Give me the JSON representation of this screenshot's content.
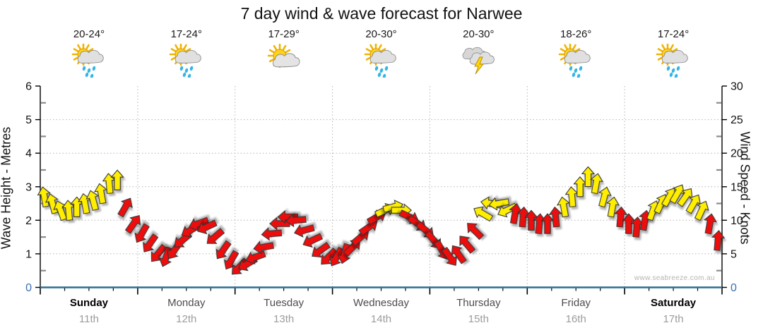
{
  "title": "7 day wind & wave forecast for Narwee",
  "watermark": "www.seabreeze.com.au",
  "colors": {
    "arrow_yellow": "#ffee00",
    "arrow_red": "#ee1111",
    "arrow_outline": "#333333",
    "axis_black": "#000000",
    "x_axis_blue": "#2d6d96",
    "zero_label_blue": "#3a6fb2",
    "grid_gray": "#b5b5b5",
    "minor_tick_gray": "#8c8c8c"
  },
  "left_axis": {
    "label": "Wave Height - Metres",
    "ticks": [
      0,
      1,
      2,
      3,
      4,
      5,
      6
    ],
    "min": 0,
    "max": 6
  },
  "right_axis": {
    "label": "Wind Speed - Knots",
    "ticks": [
      0,
      5,
      10,
      15,
      20,
      25,
      30
    ],
    "min": 0,
    "max": 30
  },
  "days": [
    {
      "name": "Sunday",
      "date": "11th",
      "temp": "20-24°",
      "icon": "sun-cloud-rain",
      "bold": true
    },
    {
      "name": "Monday",
      "date": "12th",
      "temp": "17-24°",
      "icon": "sun-cloud-rain",
      "bold": false
    },
    {
      "name": "Tuesday",
      "date": "13th",
      "temp": "17-29°",
      "icon": "sun-cloud",
      "bold": false
    },
    {
      "name": "Wednesday",
      "date": "14th",
      "temp": "20-30°",
      "icon": "sun-cloud-rain",
      "bold": false
    },
    {
      "name": "Thursday",
      "date": "15th",
      "temp": "20-30°",
      "icon": "storm",
      "bold": false
    },
    {
      "name": "Friday",
      "date": "16th",
      "temp": "18-26°",
      "icon": "sun-cloud-rain",
      "bold": false
    },
    {
      "name": "Saturday",
      "date": "17th",
      "temp": "17-24°",
      "icon": "sun-cloud-rain",
      "bold": true
    }
  ],
  "chart_data": {
    "type": "wind-arrow-series",
    "unit": "knots",
    "samples_per_day": 12,
    "knots_per_metre": 5,
    "ylim_knots": [
      0,
      30
    ],
    "ylim_metres": [
      0,
      6
    ],
    "grid": "dotted horizontal every 5 knots, dotted vertical at day boundaries",
    "arrow_format": "[wind_speed_knots, direction_deg_cw_from_up, color y=yellow r=red]",
    "arrows": [
      [
        13.5,
        -10,
        "y"
      ],
      [
        12.5,
        -15,
        "y"
      ],
      [
        11.5,
        -20,
        "y"
      ],
      [
        11.5,
        -5,
        "y"
      ],
      [
        12,
        0,
        "y"
      ],
      [
        12.5,
        -10,
        "y"
      ],
      [
        13,
        -15,
        "y"
      ],
      [
        14,
        -10,
        "y"
      ],
      [
        15.5,
        -5,
        "y"
      ],
      [
        16,
        0,
        "y"
      ],
      [
        12,
        30,
        "r"
      ],
      [
        9.5,
        35,
        "r"
      ],
      [
        8,
        210,
        "r"
      ],
      [
        6.5,
        215,
        "r"
      ],
      [
        5,
        220,
        "r"
      ],
      [
        4.5,
        200,
        "r"
      ],
      [
        5.5,
        215,
        "r"
      ],
      [
        7,
        230,
        "r"
      ],
      [
        8.5,
        240,
        "r"
      ],
      [
        9.5,
        250,
        "r"
      ],
      [
        9,
        245,
        "r"
      ],
      [
        7.5,
        230,
        "r"
      ],
      [
        5.5,
        215,
        "r"
      ],
      [
        4,
        210,
        "r"
      ],
      [
        3,
        225,
        "r"
      ],
      [
        3.5,
        240,
        "r"
      ],
      [
        4.5,
        250,
        "r"
      ],
      [
        6,
        260,
        "r"
      ],
      [
        8,
        265,
        "r"
      ],
      [
        9.5,
        270,
        "r"
      ],
      [
        10.5,
        270,
        "r"
      ],
      [
        10,
        265,
        "r"
      ],
      [
        8.5,
        255,
        "r"
      ],
      [
        7,
        245,
        "r"
      ],
      [
        5.5,
        235,
        "r"
      ],
      [
        4.5,
        225,
        "r"
      ],
      [
        4.5,
        210,
        "r"
      ],
      [
        5,
        195,
        "r"
      ],
      [
        6,
        45,
        "r"
      ],
      [
        7.5,
        50,
        "r"
      ],
      [
        9,
        55,
        "r"
      ],
      [
        10.5,
        60,
        "r"
      ],
      [
        11.5,
        65,
        "y"
      ],
      [
        12,
        75,
        "y"
      ],
      [
        11.5,
        90,
        "y"
      ],
      [
        10.5,
        115,
        "r"
      ],
      [
        9.5,
        125,
        "r"
      ],
      [
        8.5,
        130,
        "r"
      ],
      [
        7,
        140,
        "r"
      ],
      [
        5.5,
        150,
        "r"
      ],
      [
        4.5,
        145,
        "r"
      ],
      [
        5,
        325,
        "r"
      ],
      [
        6.5,
        320,
        "r"
      ],
      [
        8.5,
        315,
        "r"
      ],
      [
        11,
        300,
        "y"
      ],
      [
        12.5,
        280,
        "y"
      ],
      [
        12.5,
        260,
        "y"
      ],
      [
        11.5,
        245,
        "y"
      ],
      [
        11,
        10,
        "r"
      ],
      [
        10.5,
        5,
        "r"
      ],
      [
        10,
        0,
        "r"
      ],
      [
        9.5,
        5,
        "r"
      ],
      [
        9.5,
        0,
        "r"
      ],
      [
        10.5,
        355,
        "r"
      ],
      [
        12,
        350,
        "y"
      ],
      [
        13.5,
        355,
        "y"
      ],
      [
        15,
        0,
        "y"
      ],
      [
        16.5,
        0,
        "y"
      ],
      [
        15.5,
        10,
        "y"
      ],
      [
        13.5,
        15,
        "y"
      ],
      [
        12,
        10,
        "y"
      ],
      [
        10.5,
        5,
        "r"
      ],
      [
        9.5,
        0,
        "r"
      ],
      [
        9,
        5,
        "r"
      ],
      [
        10,
        10,
        "r"
      ],
      [
        11.5,
        20,
        "y"
      ],
      [
        12.5,
        25,
        "y"
      ],
      [
        13.5,
        30,
        "y"
      ],
      [
        14,
        30,
        "y"
      ],
      [
        13.5,
        35,
        "y"
      ],
      [
        12.5,
        30,
        "y"
      ],
      [
        11.5,
        25,
        "y"
      ],
      [
        9.5,
        10,
        "r"
      ],
      [
        7,
        5,
        "r"
      ]
    ]
  }
}
